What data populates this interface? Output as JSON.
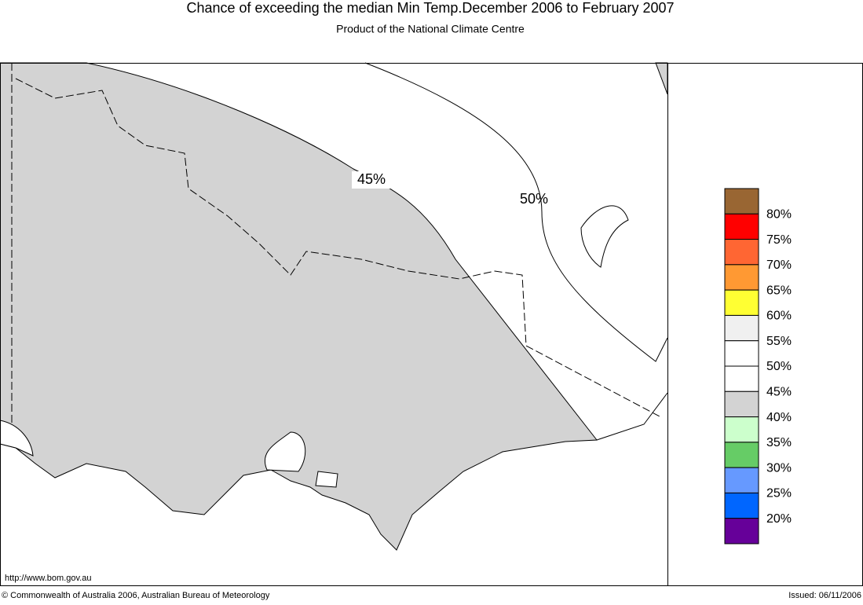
{
  "header": {
    "title": "Chance of exceeding the median Min Temp.December 2006 to February 2007",
    "subtitle": "Product of the National Climate Centre"
  },
  "map": {
    "contour_labels": [
      "45%",
      "50%"
    ]
  },
  "legend": {
    "colors": [
      "#996633",
      "#ff0000",
      "#ff6633",
      "#ff9933",
      "#ffff33",
      "#f0f0f0",
      "#ffffff",
      "#ffffff",
      "#d3d3d3",
      "#ccffcc",
      "#66cc66",
      "#6699ff",
      "#0066ff",
      "#660099"
    ],
    "labels": [
      "80%",
      "75%",
      "70%",
      "65%",
      "60%",
      "55%",
      "50%",
      "45%",
      "40%",
      "35%",
      "30%",
      "25%",
      "20%"
    ]
  },
  "footer": {
    "url": "http://www.bom.gov.au",
    "copyright": "© Commonwealth of Australia 2006, Australian Bureau of Meteorology",
    "issued": "Issued: 06/11/2006"
  }
}
